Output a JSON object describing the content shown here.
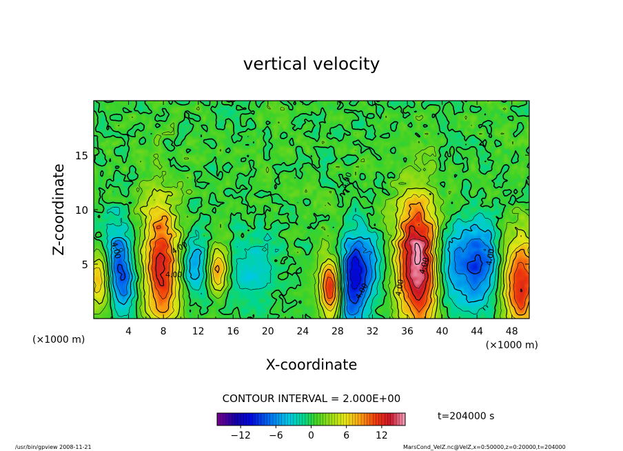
{
  "chart_data": {
    "type": "heatmap",
    "title": "vertical velocity",
    "xlabel": "X-coordinate",
    "ylabel": "Z-coordinate",
    "x_unit_left": "(×1000 m)",
    "x_unit_right": "(×1000 m)",
    "xlim": [
      0,
      50
    ],
    "ylim": [
      0,
      20
    ],
    "x_ticks": [
      4,
      8,
      12,
      16,
      20,
      24,
      28,
      32,
      36,
      40,
      44,
      48
    ],
    "y_ticks": [
      5,
      10,
      15
    ],
    "contour_interval_label": "CONTOUR INTERVAL = 2.000E+00",
    "contour_labels": [
      "4.00",
      "4.00",
      "4.00",
      "4.00",
      "4.00",
      "4.00",
      "4.00",
      "4.00"
    ],
    "time_label": "t=204000 s",
    "colorbar": {
      "min": -16,
      "max": 16,
      "ticks": [
        -12,
        -6,
        0,
        6,
        12
      ],
      "tick_labels": [
        "−12",
        "−6",
        "0",
        "6",
        "12"
      ]
    },
    "features": [
      {
        "x": 0.7,
        "z": 3.5,
        "value": 8,
        "sx": 1.0,
        "sz": 2.0,
        "rot": 0
      },
      {
        "x": 3.0,
        "z": 4.5,
        "value": -9,
        "sx": 1.3,
        "sz": 2.8,
        "rot": 0.35
      },
      {
        "x": 7.8,
        "z": 5.0,
        "value": 12,
        "sx": 1.6,
        "sz": 4.2,
        "rot": 0.6
      },
      {
        "x": 11.5,
        "z": 4.8,
        "value": -6,
        "sx": 1.2,
        "sz": 2.0,
        "rot": 0
      },
      {
        "x": 14.3,
        "z": 4.6,
        "value": 9,
        "sx": 0.8,
        "sz": 1.6,
        "rot": 0
      },
      {
        "x": 18.0,
        "z": 4.5,
        "value": -3.5,
        "sx": 2.0,
        "sz": 2.6,
        "rot": 0
      },
      {
        "x": 27.2,
        "z": 2.8,
        "value": 12,
        "sx": 0.9,
        "sz": 2.0,
        "rot": 0
      },
      {
        "x": 29.8,
        "z": 3.5,
        "value": -11,
        "sx": 1.2,
        "sz": 3.0,
        "rot": -0.3
      },
      {
        "x": 31.8,
        "z": 5.0,
        "value": -4,
        "sx": 1.2,
        "sz": 2.0,
        "rot": 0
      },
      {
        "x": 37.3,
        "z": 5.0,
        "value": 16,
        "sx": 1.8,
        "sz": 4.2,
        "rot": 0.25
      },
      {
        "x": 40.5,
        "z": 4.5,
        "value": -6,
        "sx": 1.4,
        "sz": 3.0,
        "rot": 0
      },
      {
        "x": 44.2,
        "z": 5.0,
        "value": -9,
        "sx": 1.7,
        "sz": 2.6,
        "rot": 0
      },
      {
        "x": 49.0,
        "z": 3.2,
        "value": 12,
        "sx": 1.5,
        "sz": 3.0,
        "rot": 0
      }
    ],
    "background_value": 0.4
  },
  "footer": {
    "program": "/usr/bin/gpview   2008-11-21",
    "source": "MarsCond_VelZ.nc@VelZ,x=0:50000,z=0:20000,t=204000"
  },
  "colors": {
    "frame": "#000000",
    "background": "#ffffff"
  }
}
